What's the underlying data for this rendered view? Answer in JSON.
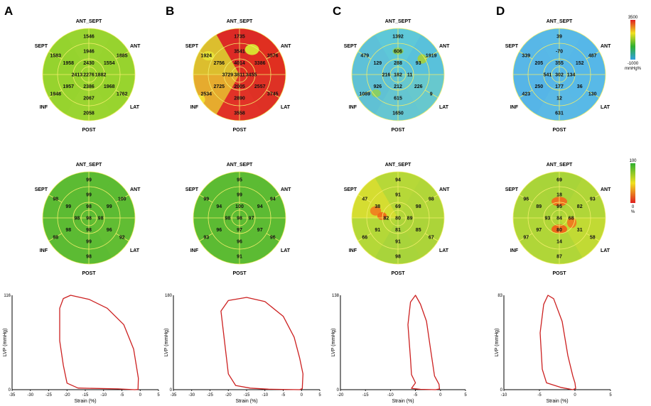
{
  "directions": {
    "top": "ANT_SEPT",
    "upper_right": "ANT",
    "upper_left": "SEPT",
    "lower_right": "LAT",
    "lower_left": "INF",
    "bottom": "POST"
  },
  "color_scales": {
    "work": {
      "max": "3500",
      "min": "-1000",
      "unit": "mmHg%",
      "colors": [
        "#e02020",
        "#f0e020",
        "#30b030",
        "#30a0e0"
      ]
    },
    "efficiency": {
      "max": "100",
      "min": "0",
      "unit": "%",
      "colors": [
        "#30b030",
        "#f0e020",
        "#e02020"
      ]
    }
  },
  "panels": [
    {
      "label": "A",
      "work": {
        "values": [
          "1546",
          "1885",
          "1762",
          "2058",
          "1948",
          "1583",
          "1946",
          "1554",
          "1968",
          "2067",
          "1957",
          "1958",
          "1882",
          "2386",
          "2413",
          "2430",
          "2276"
        ],
        "colors": [
          "#98d430",
          "#96d22e",
          "#98d32e",
          "#9ad430",
          "#96d22e",
          "#94d22e"
        ],
        "blobs": []
      },
      "efficiency": {
        "values": [
          "99",
          "100",
          "92",
          "98",
          "98",
          "98",
          "99",
          "99",
          "96",
          "99",
          "98",
          "99",
          "98",
          "98",
          "98",
          "98",
          "98"
        ],
        "colors": [
          "#5cbb34",
          "#5cbb34",
          "#62bd34",
          "#5cbb34",
          "#5cbb34",
          "#5cbb34"
        ],
        "blobs": []
      },
      "loop": {
        "ylim": [
          "0",
          "116"
        ],
        "ymax_label": "116",
        "xticks": [
          "-35",
          "-30",
          "-25",
          "-20",
          "-15",
          "-10",
          "-5",
          "0",
          "5"
        ],
        "xlabel": "Strain (%)",
        "ylabel": "LVP (mmHg)",
        "points": [
          [
            -1.5,
            0
          ],
          [
            -0.6,
            0.3
          ],
          [
            -0.5,
            14
          ],
          [
            -1.0,
            28
          ],
          [
            -1.8,
            50
          ],
          [
            -4.5,
            80
          ],
          [
            -9,
            100
          ],
          [
            -14,
            111
          ],
          [
            -19,
            116
          ],
          [
            -21,
            112
          ],
          [
            -22,
            100
          ],
          [
            -22,
            60
          ],
          [
            -21,
            30
          ],
          [
            -20,
            8
          ],
          [
            -17,
            2
          ],
          [
            -6,
            1
          ],
          [
            -1.5,
            0
          ]
        ]
      }
    },
    {
      "label": "B",
      "work": {
        "values": [
          "1735",
          "3576",
          "3745",
          "3558",
          "2534",
          "1924",
          "3541",
          "3386",
          "2557",
          "2890",
          "2725",
          "2756",
          "3455",
          "2005",
          "3729",
          "4014",
          "3811"
        ],
        "colors": [
          "#dc2a26",
          "#e03020",
          "#de3226",
          "#e23428",
          "#e8c230",
          "#dcd830"
        ],
        "blobs": [
          [
            0.8,
            -1.6,
            0.45,
            0.35,
            "#d8e830"
          ],
          [
            -2.0,
            -1.2,
            0.4,
            0.3,
            "#e6e236"
          ],
          [
            -2.5,
            1.6,
            0.3,
            0.3,
            "#f4e030"
          ]
        ]
      },
      "efficiency": {
        "values": [
          "95",
          "94",
          "96",
          "91",
          "93",
          "99",
          "99",
          "94",
          "97",
          "96",
          "96",
          "94",
          "97",
          "97",
          "98",
          "100",
          "98"
        ],
        "colors": [
          "#5cbb34",
          "#5cbb34",
          "#5cbb34",
          "#5cbb34",
          "#5cbb34",
          "#5cbb34"
        ],
        "blobs": []
      },
      "loop": {
        "ylim": [
          "0",
          "180"
        ],
        "ymax_label": "180",
        "xticks": [
          "-35",
          "-30",
          "-25",
          "-20",
          "-15",
          "-10",
          "-5",
          "0",
          "5"
        ],
        "xlabel": "Strain (%)",
        "ylabel": "LVP (mmHg)",
        "points": [
          [
            -0.5,
            0
          ],
          [
            0.2,
            2
          ],
          [
            0.4,
            30
          ],
          [
            -0.5,
            60
          ],
          [
            -2,
            100
          ],
          [
            -5,
            140
          ],
          [
            -10,
            168
          ],
          [
            -15,
            176
          ],
          [
            -20,
            170
          ],
          [
            -22,
            150
          ],
          [
            -21,
            90
          ],
          [
            -20,
            30
          ],
          [
            -18,
            8
          ],
          [
            -14,
            3
          ],
          [
            -9,
            1
          ],
          [
            -0.5,
            0
          ]
        ]
      }
    },
    {
      "label": "C",
      "work": {
        "values": [
          "1392",
          "1919",
          "9",
          "1650",
          "1089",
          "479",
          "606",
          "93",
          "226",
          "615",
          "926",
          "129",
          "11",
          "212",
          "216",
          "288",
          "182"
        ],
        "colors": [
          "#5ec8d8",
          "#58c0dc",
          "#68c8cc",
          "#66c6d0",
          "#60c0d4",
          "#5ec0d8"
        ],
        "blobs": [
          [
            0,
            -1.5,
            0.35,
            0.22,
            "#86cc58"
          ],
          [
            1.55,
            -1.0,
            0.3,
            0.3,
            "#a2d040"
          ],
          [
            -1.4,
            1.2,
            0.3,
            0.25,
            "#8ad060"
          ]
        ]
      },
      "efficiency": {
        "values": [
          "94",
          "98",
          "67",
          "98",
          "66",
          "47",
          "91",
          "98",
          "85",
          "91",
          "91",
          "38",
          "89",
          "81",
          "82",
          "69",
          "80"
        ],
        "colors": [
          "#b6d838",
          "#b0d63a",
          "#aad43a",
          "#a6d43c",
          "#b4d838",
          "#dade30"
        ],
        "blobs": [
          [
            -1.43,
            -0.45,
            0.35,
            0.3,
            "#f08020"
          ],
          [
            -1.02,
            -0.12,
            0.3,
            0.25,
            "#f06818"
          ]
        ]
      },
      "loop": {
        "ylim": [
          "0",
          "138"
        ],
        "ymax_label": "138",
        "xticks": [
          "-20",
          "-15",
          "-10",
          "-5",
          "0",
          "5"
        ],
        "xlabel": "Strain (%)",
        "ylabel": "LVP (mmHg)",
        "points": [
          [
            -1,
            0
          ],
          [
            -0.2,
            1
          ],
          [
            -0.3,
            8
          ],
          [
            -1.2,
            20
          ],
          [
            -2,
            60
          ],
          [
            -2.8,
            100
          ],
          [
            -4,
            125
          ],
          [
            -5,
            138
          ],
          [
            -6,
            128
          ],
          [
            -6.5,
            95
          ],
          [
            -6,
            45
          ],
          [
            -5.8,
            22
          ],
          [
            -5,
            10
          ],
          [
            -5.8,
            2
          ],
          [
            -4,
            0.5
          ],
          [
            -1,
            0
          ]
        ]
      }
    },
    {
      "label": "D",
      "work": {
        "values": [
          "39",
          "487",
          "130",
          "631",
          "423",
          "339",
          "-70",
          "152",
          "36",
          "12",
          "250",
          "205",
          "134",
          "177",
          "541",
          "355",
          "302"
        ],
        "colors": [
          "#58b8e6",
          "#56b6e8",
          "#58b8e6",
          "#5ab8e4",
          "#56b4e6",
          "#58b6e6"
        ],
        "blobs": []
      },
      "efficiency": {
        "values": [
          "69",
          "93",
          "58",
          "87",
          "97",
          "96",
          "18",
          "82",
          "31",
          "14",
          "97",
          "89",
          "68",
          "80",
          "93",
          "95",
          "84"
        ],
        "colors": [
          "#a8d43a",
          "#b2d638",
          "#c6da34",
          "#b2d638",
          "#b2d638",
          "#aad43a"
        ],
        "blobs": [
          [
            0,
            -1.05,
            0.5,
            0.3,
            "#f06a1c"
          ],
          [
            0,
            0.72,
            0.5,
            0.3,
            "#f06218"
          ],
          [
            0.8,
            0.3,
            0.3,
            0.35,
            "#f07a20"
          ]
        ]
      },
      "loop": {
        "ylim": [
          "0",
          "83"
        ],
        "ymax_label": "83",
        "xticks": [
          "-10",
          "-5",
          "0",
          "5"
        ],
        "xlabel": "Strain (%)",
        "ylabel": "LVP (mmHg)",
        "points": [
          [
            -0.3,
            0
          ],
          [
            0.1,
            1
          ],
          [
            0,
            6
          ],
          [
            -0.3,
            12
          ],
          [
            -1,
            30
          ],
          [
            -1.8,
            60
          ],
          [
            -3,
            80
          ],
          [
            -3.8,
            83
          ],
          [
            -4.4,
            75
          ],
          [
            -4.9,
            50
          ],
          [
            -4.6,
            18
          ],
          [
            -4,
            6
          ],
          [
            -2,
            2
          ],
          [
            -0.3,
            0
          ]
        ]
      }
    }
  ]
}
